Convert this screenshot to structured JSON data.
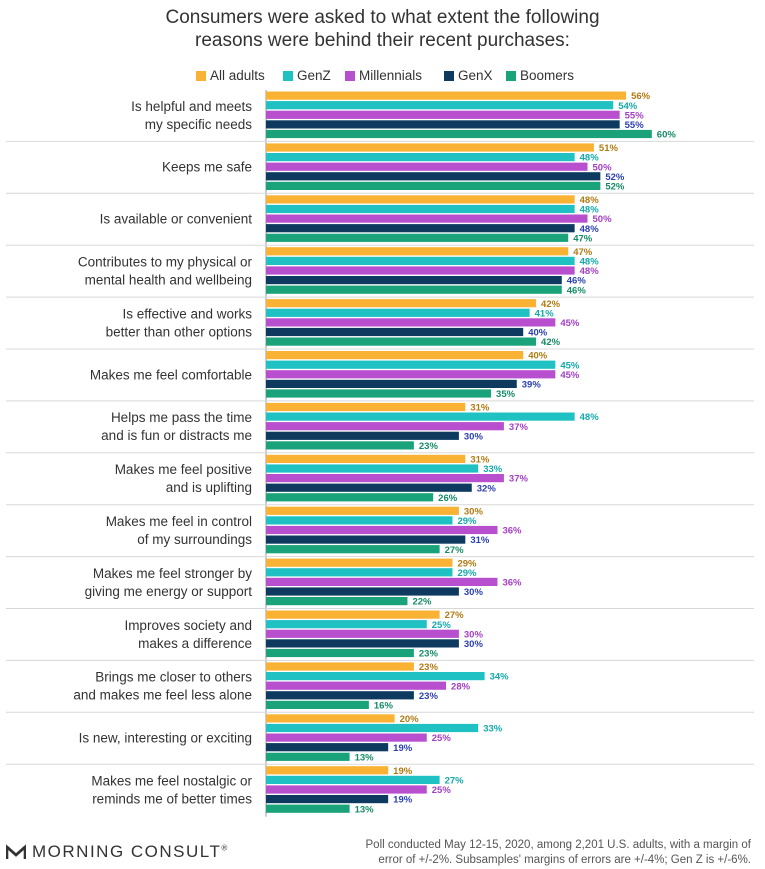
{
  "title_lines": [
    "Consumers were asked to what extent the following",
    "reasons were behind their recent purchases:"
  ],
  "colors": {
    "All adults": "#F9B233",
    "GenZ": "#1FC1C3",
    "Millennials": "#B84FCF",
    "GenX": "#0D3A5E",
    "Boomers": "#1AA27B"
  },
  "label_colors": {
    "All adults": "#B07A12",
    "GenZ": "#14A9AB",
    "Millennials": "#A43EC4",
    "GenX": "#2A3FB0",
    "Boomers": "#148A66"
  },
  "chart_data": {
    "type": "bar",
    "orientation": "horizontal",
    "categories": [
      [
        "Is helpful and meets",
        "my specific needs"
      ],
      [
        "Keeps me safe"
      ],
      [
        "Is available or convenient"
      ],
      [
        "Contributes to my physical or",
        "mental health and wellbeing"
      ],
      [
        "Is effective and works",
        "better than other options"
      ],
      [
        "Makes me feel comfortable"
      ],
      [
        "Helps me pass the time",
        "and is fun or distracts me"
      ],
      [
        "Makes me feel positive",
        "and is uplifting"
      ],
      [
        "Makes me feel in control",
        "of my surroundings"
      ],
      [
        "Makes me feel stronger by",
        "giving me energy or support"
      ],
      [
        "Improves society and",
        "makes a difference"
      ],
      [
        "Brings me closer to others",
        "and makes me feel less alone"
      ],
      [
        "Is new, interesting or exciting"
      ],
      [
        "Makes me feel nostalgic or",
        "reminds me of better times"
      ]
    ],
    "series": [
      {
        "name": "All adults",
        "values": [
          56,
          51,
          48,
          47,
          42,
          40,
          31,
          31,
          30,
          29,
          27,
          23,
          20,
          19
        ]
      },
      {
        "name": "GenZ",
        "values": [
          54,
          48,
          48,
          48,
          41,
          45,
          48,
          33,
          29,
          29,
          25,
          34,
          33,
          27
        ]
      },
      {
        "name": "Millennials",
        "values": [
          55,
          50,
          50,
          48,
          45,
          45,
          37,
          37,
          36,
          36,
          30,
          28,
          25,
          25
        ]
      },
      {
        "name": "GenX",
        "values": [
          55,
          52,
          48,
          46,
          40,
          39,
          30,
          32,
          31,
          30,
          30,
          23,
          19,
          19
        ]
      },
      {
        "name": "Boomers",
        "values": [
          60,
          52,
          47,
          46,
          42,
          35,
          23,
          26,
          27,
          22,
          23,
          16,
          13,
          13
        ]
      }
    ],
    "value_suffix": "%",
    "legend_position": "top",
    "grid": false
  },
  "footer": {
    "logo_text": "MORNING CONSULT",
    "logo_mark": "®",
    "note_lines": [
      "Poll conducted May 12-15, 2020, among 2,201 U.S. adults, with a margin of",
      "error of +/-2%. Subsamples' margins of errors are +/-4%; Gen Z is +/-6%."
    ]
  }
}
